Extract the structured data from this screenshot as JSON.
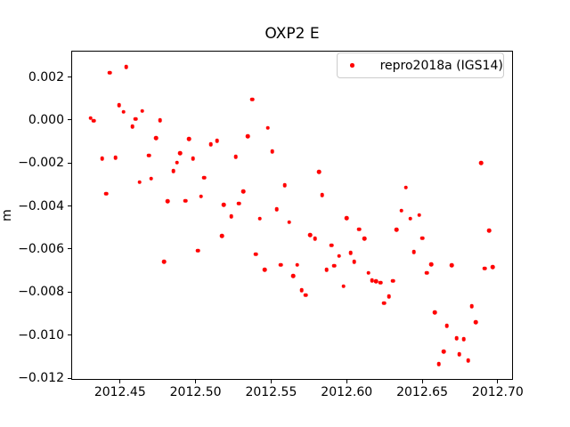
{
  "figure": {
    "title": "OXP2 E",
    "ylabel": "m",
    "background_color": "#ffffff",
    "axes_color": "#000000",
    "legend": {
      "label": "repro2018a (IGS14)",
      "marker_color": "#ff0000",
      "border_color": "#cccccc"
    }
  },
  "chart_data": {
    "type": "scatter",
    "title": "OXP2 E",
    "xlabel": "",
    "ylabel": "m",
    "grid": false,
    "legend_position": "upper right",
    "xlim": [
      2012.4177,
      2012.7101
    ],
    "ylim": [
      -0.01209,
      0.0032
    ],
    "xticks": [
      2012.45,
      2012.5,
      2012.55,
      2012.6,
      2012.65,
      2012.7
    ],
    "xtick_labels": [
      "2012.45",
      "2012.50",
      "2012.55",
      "2012.60",
      "2012.65",
      "2012.70"
    ],
    "yticks": [
      0.002,
      0.0,
      -0.002,
      -0.004,
      -0.006,
      -0.008,
      -0.01,
      -0.012
    ],
    "ytick_labels": [
      "0.002",
      "0.000",
      "−0.002",
      "−0.004",
      "−0.006",
      "−0.008",
      "−0.010",
      "−0.012"
    ],
    "series": [
      {
        "name": "repro2018a (IGS14)",
        "color": "#ff0000",
        "marker": "dot",
        "points": [
          [
            2012.4541,
            0.00248
          ],
          [
            2012.4431,
            0.00221
          ],
          [
            2012.4494,
            0.00069
          ],
          [
            2012.4524,
            0.00039
          ],
          [
            2012.4647,
            0.00043
          ],
          [
            2012.4604,
            6e-05
          ],
          [
            2012.4305,
            0.0001
          ],
          [
            2012.4326,
            -3e-05
          ],
          [
            2012.4581,
            -0.00029
          ],
          [
            2012.4764,
            0.0
          ],
          [
            2012.4738,
            -0.00083
          ],
          [
            2012.4958,
            -0.00087
          ],
          [
            2012.51,
            -0.00113
          ],
          [
            2012.5141,
            -0.00095
          ],
          [
            2012.4382,
            -0.00178
          ],
          [
            2012.4471,
            -0.00175
          ],
          [
            2012.469,
            -0.00164
          ],
          [
            2012.4899,
            -0.00154
          ],
          [
            2012.4982,
            -0.00178
          ],
          [
            2012.4877,
            -0.00197
          ],
          [
            2012.4854,
            -0.00237
          ],
          [
            2012.4628,
            -0.00288
          ],
          [
            2012.4706,
            -0.00272
          ],
          [
            2012.5056,
            -0.00268
          ],
          [
            2012.4407,
            -0.00343
          ],
          [
            2012.4814,
            -0.00378
          ],
          [
            2012.4932,
            -0.00375
          ],
          [
            2012.5035,
            -0.00355
          ],
          [
            2012.5374,
            0.00097
          ],
          [
            2012.5479,
            -0.00037
          ],
          [
            2012.5345,
            -0.00076
          ],
          [
            2012.5508,
            -0.00145
          ],
          [
            2012.5267,
            -0.0017
          ],
          [
            2012.5817,
            -0.00241
          ],
          [
            2012.5591,
            -0.00303
          ],
          [
            2012.5315,
            -0.00331
          ],
          [
            2012.5837,
            -0.00348
          ],
          [
            2012.5286,
            -0.00387
          ],
          [
            2012.5188,
            -0.00395
          ],
          [
            2012.5237,
            -0.00447
          ],
          [
            2012.5424,
            -0.00458
          ],
          [
            2012.5999,
            -0.00455
          ],
          [
            2012.689,
            -0.002
          ],
          [
            2012.6393,
            -0.00314
          ],
          [
            2012.6363,
            -0.00421
          ],
          [
            2012.6422,
            -0.00459
          ],
          [
            2012.6481,
            -0.00441
          ],
          [
            2012.4791,
            -0.00659
          ],
          [
            2012.5017,
            -0.00607
          ],
          [
            2012.5176,
            -0.00539
          ],
          [
            2012.562,
            -0.00475
          ],
          [
            2012.5538,
            -0.00415
          ],
          [
            2012.5758,
            -0.00534
          ],
          [
            2012.5791,
            -0.00551
          ],
          [
            2012.6082,
            -0.00508
          ],
          [
            2012.6117,
            -0.00551
          ],
          [
            2012.5899,
            -0.00582
          ],
          [
            2012.54,
            -0.00623
          ],
          [
            2012.5949,
            -0.00632
          ],
          [
            2012.6027,
            -0.00618
          ],
          [
            2012.6051,
            -0.00658
          ],
          [
            2012.5457,
            -0.00696
          ],
          [
            2012.5565,
            -0.00673
          ],
          [
            2012.5673,
            -0.00673
          ],
          [
            2012.5646,
            -0.00724
          ],
          [
            2012.5866,
            -0.00696
          ],
          [
            2012.5919,
            -0.00678
          ],
          [
            2012.5701,
            -0.0079
          ],
          [
            2012.5728,
            -0.00814
          ],
          [
            2012.598,
            -0.00772
          ],
          [
            2012.6145,
            -0.0071
          ],
          [
            2012.6167,
            -0.00746
          ],
          [
            2012.6196,
            -0.0075
          ],
          [
            2012.6223,
            -0.00756
          ],
          [
            2012.6331,
            -0.00511
          ],
          [
            2012.6501,
            -0.00549
          ],
          [
            2012.6943,
            -0.00514
          ],
          [
            2012.6446,
            -0.00614
          ],
          [
            2012.656,
            -0.00671
          ],
          [
            2012.653,
            -0.0071
          ],
          [
            2012.6695,
            -0.00676
          ],
          [
            2012.6912,
            -0.0069
          ],
          [
            2012.6967,
            -0.00683
          ],
          [
            2012.6308,
            -0.00748
          ],
          [
            2012.6279,
            -0.0082
          ],
          [
            2012.6249,
            -0.00851
          ],
          [
            2012.6583,
            -0.00894
          ],
          [
            2012.6829,
            -0.00866
          ],
          [
            2012.6662,
            -0.00956
          ],
          [
            2012.6854,
            -0.0094
          ],
          [
            2012.6727,
            -0.01014
          ],
          [
            2012.6774,
            -0.01018
          ],
          [
            2012.6642,
            -0.01076
          ],
          [
            2012.6746,
            -0.01089
          ],
          [
            2012.6805,
            -0.01117
          ],
          [
            2012.6609,
            -0.01135
          ]
        ]
      }
    ]
  }
}
